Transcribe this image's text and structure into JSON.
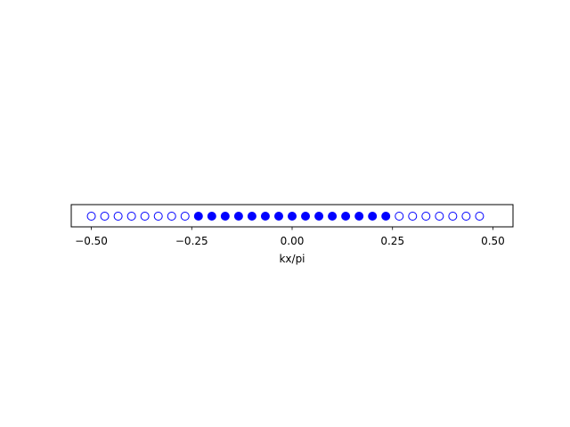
{
  "chart_data": {
    "type": "scatter",
    "xlabel": "kx/pi",
    "ylabel": "",
    "xlim": [
      -0.55,
      0.55
    ],
    "x_ticks": [
      -0.5,
      -0.25,
      0.0,
      0.25,
      0.5
    ],
    "x_tick_labels": [
      "−0.50",
      "−0.25",
      "0.00",
      "0.25",
      "0.50"
    ],
    "y_ticks": [],
    "grid": false,
    "marker_color": "#0000ff",
    "series": [
      {
        "marker": "open-circle",
        "x": [
          -0.5,
          -0.4667,
          -0.4333,
          -0.4,
          -0.3667,
          -0.3333,
          -0.3,
          -0.2667,
          0.2667,
          0.3,
          0.3333,
          0.3667,
          0.4,
          0.4333,
          0.4667
        ]
      },
      {
        "marker": "filled-circle",
        "x": [
          -0.2333,
          -0.2,
          -0.1667,
          -0.1333,
          -0.1,
          -0.0667,
          -0.0333,
          0.0,
          0.0333,
          0.0667,
          0.1,
          0.1333,
          0.1667,
          0.2,
          0.2333
        ]
      }
    ]
  }
}
